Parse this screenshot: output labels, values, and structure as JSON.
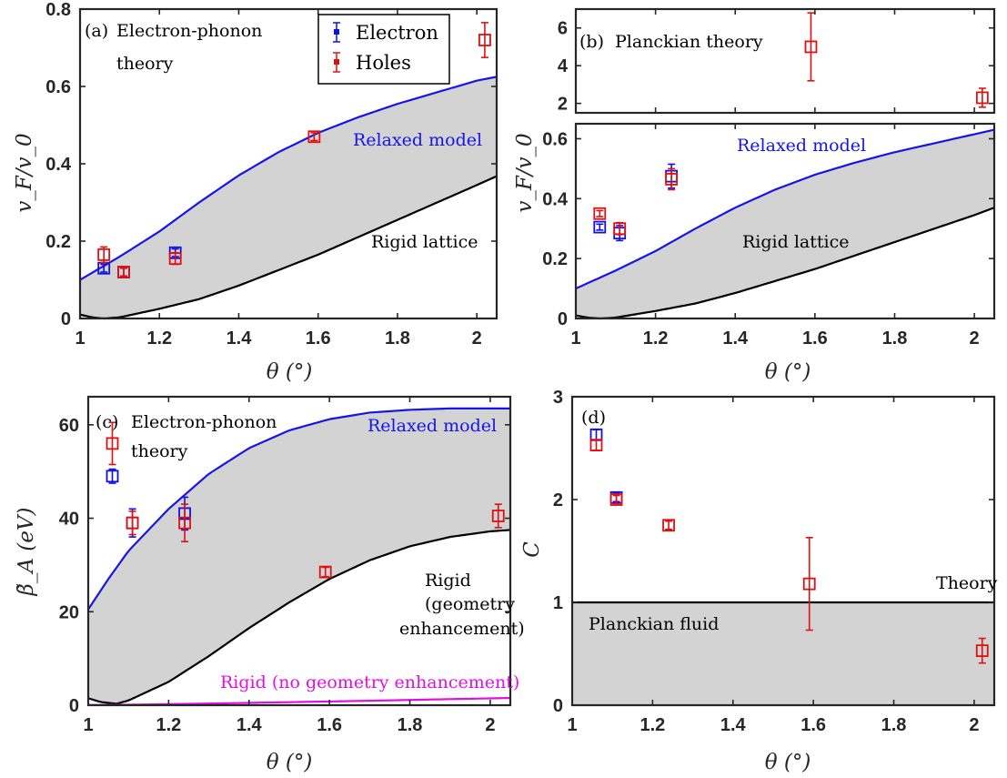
{
  "colors": {
    "electron": "#1010e0",
    "holes": "#e01010",
    "relaxed": "#1515e8",
    "rigid": "#000000",
    "rigid_no_geom": "#e010e0",
    "band_fill": "#d3d3d3",
    "axis": "#262626"
  },
  "chart_data": [
    {
      "id": "a",
      "type": "scatter",
      "panel_label": "(a)",
      "title_lines": [
        "Electron-phonon",
        "theory"
      ],
      "xlabel": "θ (°)",
      "ylabel": "v_F/v_0",
      "xlim": [
        1,
        2.05
      ],
      "ylim": [
        0,
        0.8
      ],
      "xticks": [
        1,
        1.2,
        1.4,
        1.6,
        1.8,
        2
      ],
      "xtick_labels": [
        "1",
        "1.2",
        "1.4",
        "1.6",
        "1.8",
        "2"
      ],
      "yticks": [
        0,
        0.2,
        0.4,
        0.6,
        0.8
      ],
      "ytick_labels": [
        "0",
        "0.2",
        "0.4",
        "0.6",
        "0.8"
      ],
      "legend": {
        "entries": [
          "Electron",
          "Holes"
        ],
        "placement": "top-center"
      },
      "series": [
        {
          "name": "Electron",
          "x": [
            1.06,
            1.11,
            1.24
          ],
          "y": [
            0.13,
            0.12,
            0.17
          ],
          "err": [
            0.01,
            0.01,
            0.01
          ]
        },
        {
          "name": "Holes",
          "x": [
            1.06,
            1.11,
            1.24,
            1.59,
            2.02
          ],
          "y": [
            0.165,
            0.12,
            0.155,
            0.47,
            0.72
          ],
          "err": [
            0.02,
            0.01,
            0.015,
            0.01,
            0.045
          ]
        }
      ],
      "curves": [
        {
          "name": "Relaxed model",
          "x": [
            1,
            1.05,
            1.1,
            1.2,
            1.3,
            1.4,
            1.5,
            1.6,
            1.7,
            1.8,
            1.9,
            2.0,
            2.05
          ],
          "y": [
            0.1,
            0.13,
            0.16,
            0.225,
            0.3,
            0.37,
            0.43,
            0.48,
            0.52,
            0.555,
            0.585,
            0.615,
            0.625
          ]
        },
        {
          "name": "Rigid lattice",
          "x": [
            1,
            1.03,
            1.06,
            1.1,
            1.2,
            1.3,
            1.4,
            1.5,
            1.6,
            1.7,
            1.8,
            1.9,
            2.0,
            2.05
          ],
          "y": [
            0.01,
            0.003,
            0.0,
            0.003,
            0.025,
            0.05,
            0.085,
            0.125,
            0.165,
            0.21,
            0.255,
            0.3,
            0.345,
            0.368
          ]
        }
      ],
      "annotations": [
        "Relaxed model",
        "Rigid lattice"
      ]
    },
    {
      "id": "b_top",
      "type": "scatter",
      "panel_label": "(b)",
      "title_lines": [
        "Planckian theory"
      ],
      "xlim": [
        1,
        2.05
      ],
      "ylim": [
        1.5,
        7
      ],
      "yticks": [
        2,
        4,
        6
      ],
      "ytick_labels": [
        "2",
        "4",
        "6"
      ],
      "series": [
        {
          "name": "Holes",
          "x": [
            1.59,
            2.02
          ],
          "y": [
            5.0,
            2.3
          ],
          "err": [
            1.8,
            0.5
          ]
        }
      ]
    },
    {
      "id": "b_bottom",
      "type": "scatter",
      "xlabel": "θ (°)",
      "ylabel": "v_F/v_0",
      "xlim": [
        1,
        2.05
      ],
      "ylim": [
        0,
        0.65
      ],
      "xticks": [
        1,
        1.2,
        1.4,
        1.6,
        1.8,
        2
      ],
      "xtick_labels": [
        "1",
        "1.2",
        "1.4",
        "1.6",
        "1.8",
        "2"
      ],
      "yticks": [
        0,
        0.2,
        0.4,
        0.6
      ],
      "ytick_labels": [
        "0",
        "0.2",
        "0.4",
        "0.6"
      ],
      "series": [
        {
          "name": "Electron",
          "x": [
            1.06,
            1.11,
            1.24
          ],
          "y": [
            0.305,
            0.285,
            0.475
          ],
          "err": [
            0.01,
            0.025,
            0.04
          ]
        },
        {
          "name": "Holes",
          "x": [
            1.06,
            1.11,
            1.24
          ],
          "y": [
            0.35,
            0.3,
            0.465
          ],
          "err": [
            0.01,
            0.02,
            0.035
          ]
        }
      ],
      "curves": [
        {
          "name": "Relaxed model",
          "x": [
            1,
            1.05,
            1.1,
            1.2,
            1.3,
            1.4,
            1.5,
            1.6,
            1.7,
            1.8,
            1.9,
            2.0,
            2.05
          ],
          "y": [
            0.1,
            0.13,
            0.16,
            0.225,
            0.3,
            0.37,
            0.43,
            0.48,
            0.52,
            0.555,
            0.585,
            0.615,
            0.63
          ]
        },
        {
          "name": "Rigid lattice",
          "x": [
            1,
            1.03,
            1.06,
            1.1,
            1.2,
            1.3,
            1.4,
            1.5,
            1.6,
            1.7,
            1.8,
            1.9,
            2.0,
            2.05
          ],
          "y": [
            0.01,
            0.003,
            0.0,
            0.003,
            0.025,
            0.05,
            0.085,
            0.125,
            0.165,
            0.21,
            0.255,
            0.3,
            0.345,
            0.37
          ]
        }
      ],
      "annotations": [
        "Relaxed model",
        "Rigid lattice"
      ]
    },
    {
      "id": "c",
      "type": "scatter",
      "panel_label": "(c)",
      "title_lines": [
        "Electron-phonon",
        "theory"
      ],
      "xlabel": "θ (°)",
      "ylabel": "β̃_A (eV)",
      "xlim": [
        1,
        2.05
      ],
      "ylim": [
        0,
        66
      ],
      "xticks": [
        1,
        1.2,
        1.4,
        1.6,
        1.8,
        2
      ],
      "xtick_labels": [
        "1",
        "1.2",
        "1.4",
        "1.6",
        "1.8",
        "2"
      ],
      "yticks": [
        0,
        20,
        40,
        60
      ],
      "ytick_labels": [
        "0",
        "20",
        "40",
        "60"
      ],
      "series": [
        {
          "name": "Electron",
          "x": [
            1.06,
            1.11,
            1.24
          ],
          "y": [
            49,
            39,
            41
          ],
          "err": [
            1.5,
            3,
            3.5
          ]
        },
        {
          "name": "Holes",
          "x": [
            1.06,
            1.11,
            1.24,
            1.59,
            2.02
          ],
          "y": [
            56,
            39,
            39,
            28.5,
            40.5
          ],
          "err": [
            4.5,
            2.5,
            4,
            1,
            2.5
          ]
        }
      ],
      "curves": [
        {
          "name": "Relaxed model",
          "x": [
            1,
            1.05,
            1.1,
            1.2,
            1.3,
            1.4,
            1.5,
            1.6,
            1.7,
            1.8,
            1.9,
            2.0,
            2.05
          ],
          "y": [
            20.5,
            27,
            33,
            42,
            49.5,
            55,
            58.8,
            61.2,
            62.6,
            63.2,
            63.5,
            63.5,
            63.5
          ]
        },
        {
          "name": "Rigid (geometry enhancement)",
          "x": [
            1,
            1.03,
            1.07,
            1.1,
            1.2,
            1.3,
            1.4,
            1.5,
            1.6,
            1.7,
            1.8,
            1.9,
            2.0,
            2.05
          ],
          "y": [
            1.5,
            0.7,
            0.3,
            1.0,
            5,
            10.5,
            16.5,
            22,
            27,
            31,
            34,
            36,
            37.2,
            37.5
          ]
        },
        {
          "name": "Rigid (no geometry enhancement)",
          "x": [
            1,
            1.1,
            1.3,
            1.5,
            1.7,
            1.9,
            2.05
          ],
          "y": [
            0.05,
            0.1,
            0.35,
            0.65,
            0.95,
            1.3,
            1.55
          ]
        }
      ],
      "annotations": [
        "Relaxed model",
        "Rigid",
        "(geometry",
        "enhancement)",
        "Rigid (no geometry enhancement)"
      ]
    },
    {
      "id": "d",
      "type": "scatter",
      "panel_label": "(d)",
      "xlabel": "θ (°)",
      "ylabel": "C",
      "xlim": [
        1,
        2.05
      ],
      "ylim": [
        0,
        3
      ],
      "xticks": [
        1,
        1.2,
        1.4,
        1.6,
        1.8,
        2
      ],
      "xtick_labels": [
        "1",
        "1.2",
        "1.4",
        "1.6",
        "1.8",
        "2"
      ],
      "yticks": [
        0,
        1,
        2,
        3
      ],
      "ytick_labels": [
        "0",
        "1",
        "2",
        "3"
      ],
      "series": [
        {
          "name": "Electron",
          "x": [
            1.06,
            1.11
          ],
          "y": [
            2.63,
            2.02
          ],
          "err": [
            0.05,
            0.04
          ]
        },
        {
          "name": "Holes",
          "x": [
            1.06,
            1.11,
            1.24,
            1.59,
            2.02
          ],
          "y": [
            2.53,
            2.0,
            1.75,
            1.18,
            0.53
          ],
          "err": [
            0.05,
            0.04,
            0.04,
            0.45,
            0.12
          ]
        }
      ],
      "curves": [
        {
          "name": "Theory",
          "x": [
            1,
            2.05
          ],
          "y": [
            1,
            1
          ]
        }
      ],
      "annotations": [
        "Theory",
        "Planckian fluid"
      ]
    }
  ]
}
